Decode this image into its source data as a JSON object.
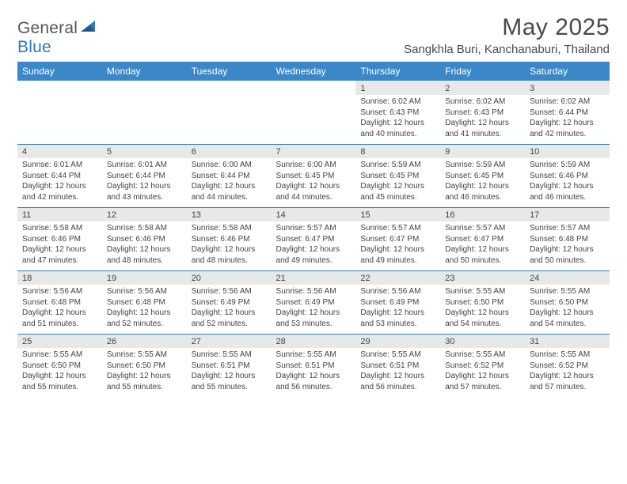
{
  "brand": {
    "word1": "General",
    "word2": "Blue"
  },
  "title": "May 2025",
  "location": "Sangkhla Buri, Kanchanaburi, Thailand",
  "colors": {
    "header_bg": "#3b87c8",
    "header_text": "#ffffff",
    "row_divider": "#2f78bd",
    "numrow_bg": "#e8e8e8",
    "text": "#444444",
    "logo_gray": "#555555",
    "logo_blue": "#2f78bd"
  },
  "typography": {
    "title_fontsize": 30,
    "location_fontsize": 15,
    "dayheader_fontsize": 12,
    "daynum_fontsize": 11,
    "body_fontsize": 10
  },
  "day_headers": [
    "Sunday",
    "Monday",
    "Tuesday",
    "Wednesday",
    "Thursday",
    "Friday",
    "Saturday"
  ],
  "weeks": [
    [
      null,
      null,
      null,
      null,
      {
        "n": "1",
        "sr": "6:02 AM",
        "ss": "6:43 PM",
        "dl": "12 hours and 40 minutes."
      },
      {
        "n": "2",
        "sr": "6:02 AM",
        "ss": "6:43 PM",
        "dl": "12 hours and 41 minutes."
      },
      {
        "n": "3",
        "sr": "6:02 AM",
        "ss": "6:44 PM",
        "dl": "12 hours and 42 minutes."
      }
    ],
    [
      {
        "n": "4",
        "sr": "6:01 AM",
        "ss": "6:44 PM",
        "dl": "12 hours and 42 minutes."
      },
      {
        "n": "5",
        "sr": "6:01 AM",
        "ss": "6:44 PM",
        "dl": "12 hours and 43 minutes."
      },
      {
        "n": "6",
        "sr": "6:00 AM",
        "ss": "6:44 PM",
        "dl": "12 hours and 44 minutes."
      },
      {
        "n": "7",
        "sr": "6:00 AM",
        "ss": "6:45 PM",
        "dl": "12 hours and 44 minutes."
      },
      {
        "n": "8",
        "sr": "5:59 AM",
        "ss": "6:45 PM",
        "dl": "12 hours and 45 minutes."
      },
      {
        "n": "9",
        "sr": "5:59 AM",
        "ss": "6:45 PM",
        "dl": "12 hours and 46 minutes."
      },
      {
        "n": "10",
        "sr": "5:59 AM",
        "ss": "6:46 PM",
        "dl": "12 hours and 46 minutes."
      }
    ],
    [
      {
        "n": "11",
        "sr": "5:58 AM",
        "ss": "6:46 PM",
        "dl": "12 hours and 47 minutes."
      },
      {
        "n": "12",
        "sr": "5:58 AM",
        "ss": "6:46 PM",
        "dl": "12 hours and 48 minutes."
      },
      {
        "n": "13",
        "sr": "5:58 AM",
        "ss": "6:46 PM",
        "dl": "12 hours and 48 minutes."
      },
      {
        "n": "14",
        "sr": "5:57 AM",
        "ss": "6:47 PM",
        "dl": "12 hours and 49 minutes."
      },
      {
        "n": "15",
        "sr": "5:57 AM",
        "ss": "6:47 PM",
        "dl": "12 hours and 49 minutes."
      },
      {
        "n": "16",
        "sr": "5:57 AM",
        "ss": "6:47 PM",
        "dl": "12 hours and 50 minutes."
      },
      {
        "n": "17",
        "sr": "5:57 AM",
        "ss": "6:48 PM",
        "dl": "12 hours and 50 minutes."
      }
    ],
    [
      {
        "n": "18",
        "sr": "5:56 AM",
        "ss": "6:48 PM",
        "dl": "12 hours and 51 minutes."
      },
      {
        "n": "19",
        "sr": "5:56 AM",
        "ss": "6:48 PM",
        "dl": "12 hours and 52 minutes."
      },
      {
        "n": "20",
        "sr": "5:56 AM",
        "ss": "6:49 PM",
        "dl": "12 hours and 52 minutes."
      },
      {
        "n": "21",
        "sr": "5:56 AM",
        "ss": "6:49 PM",
        "dl": "12 hours and 53 minutes."
      },
      {
        "n": "22",
        "sr": "5:56 AM",
        "ss": "6:49 PM",
        "dl": "12 hours and 53 minutes."
      },
      {
        "n": "23",
        "sr": "5:55 AM",
        "ss": "6:50 PM",
        "dl": "12 hours and 54 minutes."
      },
      {
        "n": "24",
        "sr": "5:55 AM",
        "ss": "6:50 PM",
        "dl": "12 hours and 54 minutes."
      }
    ],
    [
      {
        "n": "25",
        "sr": "5:55 AM",
        "ss": "6:50 PM",
        "dl": "12 hours and 55 minutes."
      },
      {
        "n": "26",
        "sr": "5:55 AM",
        "ss": "6:50 PM",
        "dl": "12 hours and 55 minutes."
      },
      {
        "n": "27",
        "sr": "5:55 AM",
        "ss": "6:51 PM",
        "dl": "12 hours and 55 minutes."
      },
      {
        "n": "28",
        "sr": "5:55 AM",
        "ss": "6:51 PM",
        "dl": "12 hours and 56 minutes."
      },
      {
        "n": "29",
        "sr": "5:55 AM",
        "ss": "6:51 PM",
        "dl": "12 hours and 56 minutes."
      },
      {
        "n": "30",
        "sr": "5:55 AM",
        "ss": "6:52 PM",
        "dl": "12 hours and 57 minutes."
      },
      {
        "n": "31",
        "sr": "5:55 AM",
        "ss": "6:52 PM",
        "dl": "12 hours and 57 minutes."
      }
    ]
  ],
  "labels": {
    "sunrise": "Sunrise:",
    "sunset": "Sunset:",
    "daylight": "Daylight:"
  }
}
